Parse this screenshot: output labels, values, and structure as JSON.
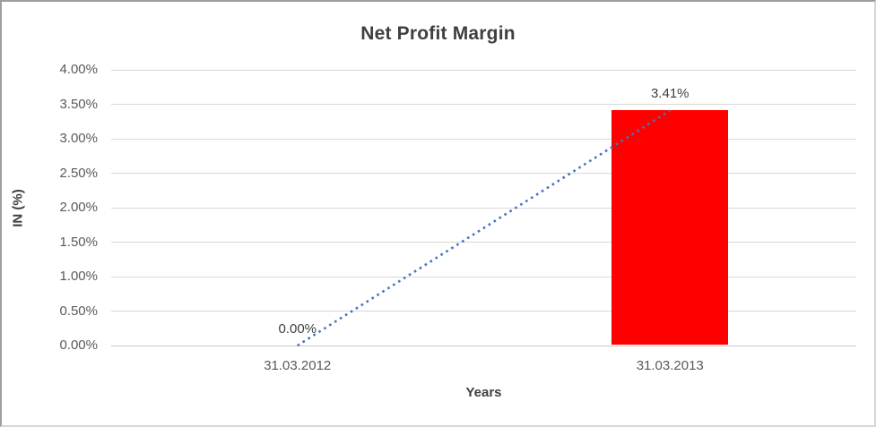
{
  "chart_data": {
    "type": "bar",
    "title": "Net Profit Margin",
    "xlabel": "Years",
    "ylabel": "IN (%)",
    "categories": [
      "31.03.2012",
      "31.03.2013"
    ],
    "series": [
      {
        "name": "Net Profit Margin",
        "values": [
          0.0,
          3.41
        ]
      }
    ],
    "data_labels": [
      "0.00%",
      "3.41%"
    ],
    "ylim": [
      0,
      4.0
    ],
    "ytick_step": 0.5,
    "ytick_labels": [
      "0.00%",
      "0.50%",
      "1.00%",
      "1.50%",
      "2.00%",
      "2.50%",
      "3.00%",
      "3.50%",
      "4.00%"
    ],
    "grid": true,
    "legend": "none",
    "bar_color": "#ff0000",
    "trendline": {
      "style": "dotted",
      "color": "#4472c4",
      "points": [
        [
          0,
          0.0
        ],
        [
          1,
          3.41
        ]
      ]
    }
  }
}
